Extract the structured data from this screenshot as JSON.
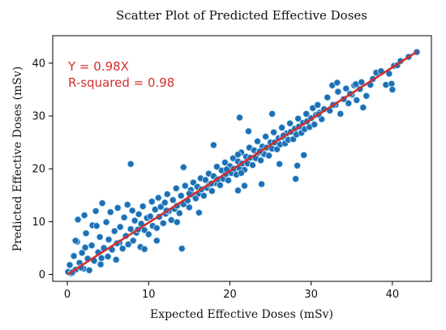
{
  "colors": {
    "points": "#1f6fb4",
    "point_edge": "#bfe6f6",
    "fit_line": "#d32f2f",
    "annotation": "#d32f2f"
  },
  "chart_data": {
    "type": "scatter",
    "title": "Scatter Plot of Predicted Effective Doses",
    "xlabel": "Expected Effective Doses (mSv)",
    "ylabel": "Predicted Effective Doses (mSv)",
    "xlim": [
      -1.8,
      44.8
    ],
    "ylim": [
      -1.3,
      45.2
    ],
    "xticks": [
      0,
      10,
      20,
      30,
      40
    ],
    "yticks": [
      0,
      10,
      20,
      30,
      40
    ],
    "grid": false,
    "annotations": [
      "Y = 0.98X",
      "R-squared = 0.98"
    ],
    "fit": {
      "slope": 0.98,
      "r_squared": 0.98,
      "x_range": [
        0,
        43
      ]
    },
    "series": [
      {
        "points": [
          [
            0.1,
            0.5
          ],
          [
            0.3,
            1.8
          ],
          [
            0.5,
            0.2
          ],
          [
            0.8,
            3.5
          ],
          [
            1.0,
            0.9
          ],
          [
            1.2,
            6.2
          ],
          [
            1.3,
            10.4
          ],
          [
            1.5,
            2.2
          ],
          [
            1.8,
            4.1
          ],
          [
            2.0,
            1.1
          ],
          [
            2.1,
            11.2
          ],
          [
            2.3,
            7.8
          ],
          [
            2.5,
            3.0
          ],
          [
            2.7,
            0.8
          ],
          [
            3.0,
            5.5
          ],
          [
            3.1,
            9.3
          ],
          [
            3.3,
            2.6
          ],
          [
            3.5,
            12.0
          ],
          [
            3.8,
            4.2
          ],
          [
            4.0,
            7.1
          ],
          [
            4.1,
            1.9
          ],
          [
            4.3,
            13.5
          ],
          [
            4.5,
            5.0
          ],
          [
            4.8,
            9.9
          ],
          [
            5.0,
            3.4
          ],
          [
            5.1,
            6.6
          ],
          [
            5.3,
            11.8
          ],
          [
            5.5,
            4.7
          ],
          [
            5.8,
            8.2
          ],
          [
            6.0,
            2.8
          ],
          [
            6.2,
            12.6
          ],
          [
            6.4,
            6.0
          ],
          [
            6.5,
            9.0
          ],
          [
            6.8,
            4.9
          ],
          [
            7.0,
            10.8
          ],
          [
            7.2,
            7.3
          ],
          [
            7.4,
            13.2
          ],
          [
            7.5,
            5.7
          ],
          [
            7.8,
            8.6
          ],
          [
            8.0,
            12.1
          ],
          [
            8.1,
            6.4
          ],
          [
            8.3,
            10.2
          ],
          [
            8.5,
            7.9
          ],
          [
            8.8,
            11.4
          ],
          [
            9.0,
            5.2
          ],
          [
            9.1,
            9.6
          ],
          [
            9.3,
            12.9
          ],
          [
            9.5,
            8.4
          ],
          [
            9.8,
            10.7
          ],
          [
            10.0,
            7.6
          ],
          [
            10.2,
            11.0
          ],
          [
            10.4,
            13.8
          ],
          [
            10.5,
            9.2
          ],
          [
            10.8,
            12.3
          ],
          [
            11.0,
            8.8
          ],
          [
            11.2,
            14.5
          ],
          [
            11.3,
            10.9
          ],
          [
            11.5,
            12.8
          ],
          [
            11.8,
            9.7
          ],
          [
            12.0,
            13.6
          ],
          [
            12.1,
            11.5
          ],
          [
            12.3,
            15.2
          ],
          [
            12.5,
            12.0
          ],
          [
            12.8,
            10.3
          ],
          [
            13.0,
            14.1
          ],
          [
            13.2,
            12.4
          ],
          [
            13.4,
            16.3
          ],
          [
            13.5,
            13.0
          ],
          [
            13.8,
            11.6
          ],
          [
            14.0,
            14.9
          ],
          [
            14.1,
            4.9
          ],
          [
            14.3,
            13.3
          ],
          [
            14.5,
            16.8
          ],
          [
            14.8,
            14.0
          ],
          [
            15.0,
            12.7
          ],
          [
            15.2,
            16.0
          ],
          [
            15.4,
            15.1
          ],
          [
            15.5,
            17.4
          ],
          [
            15.8,
            14.4
          ],
          [
            16.0,
            16.6
          ],
          [
            16.2,
            15.3
          ],
          [
            16.4,
            18.2
          ],
          [
            16.5,
            16.1
          ],
          [
            16.8,
            14.9
          ],
          [
            17.0,
            17.9
          ],
          [
            17.2,
            16.4
          ],
          [
            17.4,
            19.1
          ],
          [
            17.5,
            17.0
          ],
          [
            17.8,
            15.8
          ],
          [
            18.0,
            18.6
          ],
          [
            18.2,
            17.3
          ],
          [
            18.4,
            20.4
          ],
          [
            18.5,
            18.0
          ],
          [
            18.8,
            16.9
          ],
          [
            19.0,
            19.7
          ],
          [
            19.2,
            18.1
          ],
          [
            19.4,
            21.2
          ],
          [
            19.5,
            19.0
          ],
          [
            19.8,
            17.8
          ],
          [
            20.0,
            20.5
          ],
          [
            20.2,
            19.2
          ],
          [
            20.4,
            22.0
          ],
          [
            20.5,
            20.0
          ],
          [
            20.8,
            18.9
          ],
          [
            21.0,
            21.4
          ],
          [
            21.2,
            20.1
          ],
          [
            21.4,
            23.1
          ],
          [
            21.5,
            21.0
          ],
          [
            21.8,
            19.8
          ],
          [
            22.0,
            22.3
          ],
          [
            22.2,
            21.0
          ],
          [
            22.4,
            24.0
          ],
          [
            22.5,
            22.1
          ],
          [
            22.8,
            20.7
          ],
          [
            23.0,
            23.5
          ],
          [
            23.2,
            22.0
          ],
          [
            23.4,
            25.2
          ],
          [
            23.5,
            23.0
          ],
          [
            23.8,
            21.6
          ],
          [
            24.0,
            24.2
          ],
          [
            24.2,
            22.8
          ],
          [
            24.4,
            26.1
          ],
          [
            24.5,
            24.0
          ],
          [
            24.8,
            22.5
          ],
          [
            25.0,
            25.0
          ],
          [
            25.2,
            23.8
          ],
          [
            25.4,
            26.9
          ],
          [
            25.5,
            25.0
          ],
          [
            25.8,
            23.7
          ],
          [
            26.0,
            25.8
          ],
          [
            26.2,
            24.6
          ],
          [
            26.4,
            27.8
          ],
          [
            26.5,
            26.0
          ],
          [
            26.8,
            24.8
          ],
          [
            27.0,
            26.7
          ],
          [
            27.2,
            25.5
          ],
          [
            27.4,
            28.6
          ],
          [
            27.5,
            27.0
          ],
          [
            27.8,
            25.6
          ],
          [
            28.0,
            27.6
          ],
          [
            28.2,
            26.5
          ],
          [
            28.4,
            29.5
          ],
          [
            28.5,
            28.0
          ],
          [
            28.8,
            26.8
          ],
          [
            29.0,
            28.7
          ],
          [
            29.2,
            27.5
          ],
          [
            29.4,
            30.4
          ],
          [
            29.5,
            29.0
          ],
          [
            29.8,
            27.9
          ],
          [
            30.0,
            29.6
          ],
          [
            30.2,
            31.5
          ],
          [
            30.4,
            28.4
          ],
          [
            30.6,
            30.2
          ],
          [
            30.8,
            32.1
          ],
          [
            31.0,
            30.6
          ],
          [
            31.3,
            29.4
          ],
          [
            31.6,
            31.3
          ],
          [
            32.0,
            33.5
          ],
          [
            32.3,
            31.0
          ],
          [
            32.6,
            35.8
          ],
          [
            33.0,
            32.1
          ],
          [
            33.3,
            34.6
          ],
          [
            33.6,
            30.4
          ],
          [
            34.0,
            33.2
          ],
          [
            34.3,
            35.2
          ],
          [
            34.6,
            32.4
          ],
          [
            35.0,
            34.0
          ],
          [
            35.3,
            35.8
          ],
          [
            35.6,
            33.0
          ],
          [
            36.0,
            35.1
          ],
          [
            36.4,
            31.6
          ],
          [
            36.8,
            33.8
          ],
          [
            37.3,
            35.9
          ],
          [
            38.0,
            38.2
          ],
          [
            38.6,
            38.5
          ],
          [
            39.2,
            35.9
          ],
          [
            39.6,
            38.0
          ],
          [
            39.9,
            36.1
          ],
          [
            40.0,
            35.0
          ],
          [
            40.2,
            39.5
          ],
          [
            40.6,
            39.6
          ],
          [
            41.0,
            40.4
          ],
          [
            42.0,
            41.2
          ],
          [
            43.0,
            42.1
          ],
          [
            7.8,
            20.9
          ],
          [
            21.0,
            22.7
          ],
          [
            21.0,
            15.9
          ],
          [
            21.4,
            19.2
          ],
          [
            21.8,
            16.8
          ],
          [
            23.9,
            17.1
          ],
          [
            21.2,
            29.7
          ],
          [
            28.3,
            20.6
          ],
          [
            28.1,
            18.1
          ],
          [
            29.1,
            22.6
          ],
          [
            9.5,
            4.8
          ],
          [
            11.0,
            6.4
          ],
          [
            13.5,
            9.9
          ],
          [
            14.3,
            20.3
          ],
          [
            16.2,
            11.7
          ],
          [
            18.0,
            24.5
          ],
          [
            22.3,
            27.1
          ],
          [
            25.2,
            30.4
          ],
          [
            26.1,
            20.9
          ],
          [
            33.2,
            36.3
          ],
          [
            35.5,
            36.0
          ],
          [
            1.0,
            6.4
          ],
          [
            2.2,
            5.1
          ],
          [
            3.6,
            9.2
          ],
          [
            0.6,
            0.4
          ],
          [
            1.7,
            1.3
          ],
          [
            4.2,
            3.1
          ],
          [
            6.1,
            5.9
          ],
          [
            8.7,
            8.5
          ],
          [
            12.2,
            12.1
          ],
          [
            15.0,
            15.3
          ],
          [
            17.7,
            17.2
          ],
          [
            19.6,
            19.9
          ],
          [
            23.7,
            23.3
          ],
          [
            26.6,
            26.3
          ],
          [
            30.9,
            30.3
          ],
          [
            32.7,
            32.1
          ],
          [
            34.8,
            34.2
          ],
          [
            36.2,
            36.4
          ],
          [
            37.6,
            37.0
          ]
        ]
      }
    ]
  }
}
